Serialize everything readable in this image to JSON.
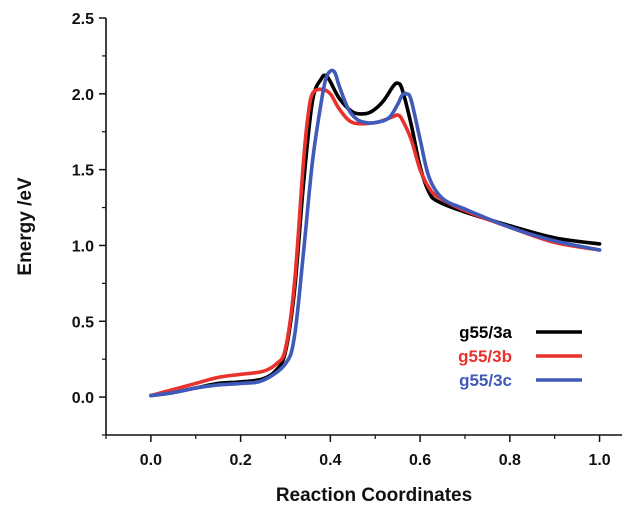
{
  "chart_data": {
    "type": "line",
    "title": "",
    "xlabel": "Reaction Coordinates",
    "ylabel": "Energy /eV",
    "xlim": [
      -0.1,
      1.05
    ],
    "ylim": [
      -0.25,
      2.5
    ],
    "xticks": [
      "0.0",
      "0.2",
      "0.4",
      "0.6",
      "0.8",
      "1.0"
    ],
    "yticks": [
      "0.0",
      "0.5",
      "1.0",
      "1.5",
      "2.0",
      "2.5"
    ],
    "grid": false,
    "legend_position": "bottom-right",
    "series": [
      {
        "name": "g55/3a",
        "color": "#000000",
        "x": [
          0.0,
          0.05,
          0.1,
          0.15,
          0.2,
          0.25,
          0.28,
          0.3,
          0.32,
          0.34,
          0.36,
          0.38,
          0.39,
          0.4,
          0.42,
          0.45,
          0.48,
          0.5,
          0.52,
          0.54,
          0.55,
          0.56,
          0.58,
          0.6,
          0.62,
          0.64,
          0.7,
          0.8,
          0.9,
          1.0
        ],
        "y": [
          0.01,
          0.03,
          0.06,
          0.09,
          0.1,
          0.12,
          0.18,
          0.3,
          0.7,
          1.4,
          1.95,
          2.1,
          2.12,
          2.08,
          1.97,
          1.88,
          1.87,
          1.9,
          1.96,
          2.05,
          2.07,
          2.03,
          1.8,
          1.52,
          1.35,
          1.29,
          1.22,
          1.13,
          1.05,
          1.01
        ]
      },
      {
        "name": "g55/3b",
        "color": "#e8322b",
        "x": [
          0.0,
          0.05,
          0.1,
          0.15,
          0.2,
          0.25,
          0.28,
          0.3,
          0.32,
          0.34,
          0.35,
          0.36,
          0.38,
          0.4,
          0.42,
          0.45,
          0.5,
          0.54,
          0.55,
          0.56,
          0.58,
          0.6,
          0.62,
          0.64,
          0.7,
          0.8,
          0.9,
          1.0
        ],
        "y": [
          0.01,
          0.05,
          0.09,
          0.13,
          0.15,
          0.17,
          0.22,
          0.32,
          0.75,
          1.55,
          1.85,
          2.0,
          2.03,
          2.0,
          1.9,
          1.81,
          1.81,
          1.85,
          1.86,
          1.83,
          1.7,
          1.5,
          1.38,
          1.32,
          1.23,
          1.12,
          1.02,
          0.97
        ]
      },
      {
        "name": "g55/3c",
        "color": "#3f5ab8",
        "x": [
          0.0,
          0.05,
          0.1,
          0.15,
          0.2,
          0.25,
          0.3,
          0.32,
          0.34,
          0.36,
          0.38,
          0.39,
          0.4,
          0.41,
          0.42,
          0.44,
          0.46,
          0.48,
          0.5,
          0.53,
          0.55,
          0.56,
          0.57,
          0.58,
          0.6,
          0.62,
          0.65,
          0.7,
          0.8,
          0.9,
          1.0
        ],
        "y": [
          0.01,
          0.03,
          0.06,
          0.08,
          0.09,
          0.11,
          0.22,
          0.4,
          0.95,
          1.55,
          1.95,
          2.1,
          2.15,
          2.14,
          2.05,
          1.9,
          1.83,
          1.81,
          1.81,
          1.84,
          1.93,
          1.99,
          2.0,
          1.96,
          1.7,
          1.45,
          1.31,
          1.24,
          1.12,
          1.03,
          0.97
        ]
      }
    ]
  }
}
